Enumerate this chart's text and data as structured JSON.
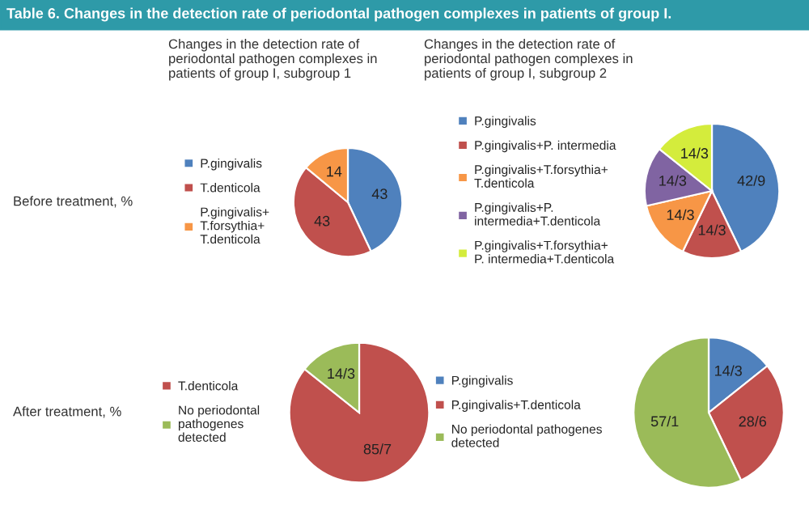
{
  "chart_data": [
    {
      "type": "pie",
      "title": "Changes in the detection rate of periodontal pathogen complexes in patients of group I, subgroup 1",
      "ylabel": "Before treatment, %",
      "annotations": [
        "Table 6. Changes in the detection rate of periodontal pathogen complexes in patients of group I."
      ],
      "categories": [
        "P.gingivalis",
        "T.denticola",
        "P.gingivalis+T.forsythia+T.denticola"
      ],
      "values": [
        43,
        43,
        14
      ],
      "colors": [
        "#4f81bd",
        "#c0504d",
        "#f79646"
      ],
      "data_labels": true,
      "legend": "left"
    },
    {
      "type": "pie",
      "title": "Changes in the detection rate of periodontal pathogen complexes in patients of group I, subgroup 2",
      "categories": [
        "P.gingivalis",
        "P.gingivalis+P. intermedia",
        "P.gingivalis+T.forsythia+T.denticola",
        "P.gingivalis+P. intermedia+T.denticola",
        "P.gingivalis+T.forsythia+P. intermedia+T.denticola"
      ],
      "values": [
        42.9,
        14.3,
        14.3,
        14.3,
        14.3
      ],
      "value_labels": [
        "42/9",
        "14/3",
        "14/3",
        "14/3",
        "14/3"
      ],
      "colors": [
        "#4f81bd",
        "#c0504d",
        "#f79646",
        "#8064a2",
        "#d4ec3c"
      ],
      "legend": "left"
    },
    {
      "type": "pie",
      "ylabel": "After treatment, %",
      "categories": [
        "T.denticola",
        "No periodontal pathogenes detected"
      ],
      "values": [
        85.7,
        14.3
      ],
      "value_labels": [
        "85/7",
        "14/3"
      ],
      "colors": [
        "#c0504d",
        "#9bbb59"
      ],
      "legend": "left"
    },
    {
      "type": "pie",
      "categories": [
        "P.gingivalis",
        "P.gingivalis+T.denticola",
        "No periodontal pathogenes detected"
      ],
      "values": [
        14.3,
        28.6,
        57.1
      ],
      "value_labels": [
        "14/3",
        "28/6",
        "57/1"
      ],
      "colors": [
        "#4f81bd",
        "#c0504d",
        "#9bbb59"
      ],
      "legend": "left"
    }
  ]
}
